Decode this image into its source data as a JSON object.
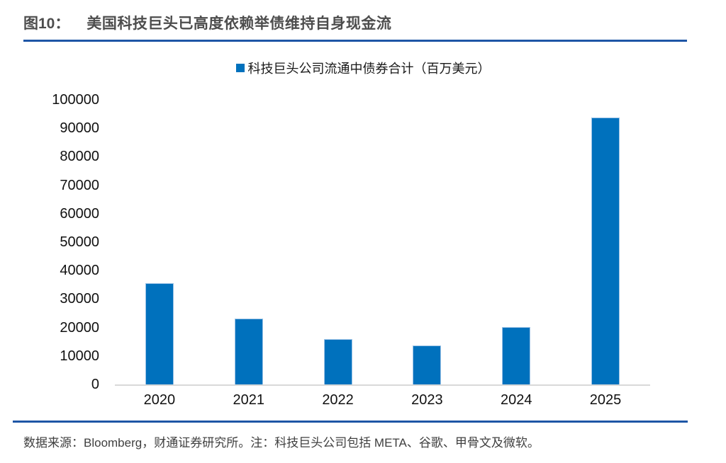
{
  "figure": {
    "label": "图10：",
    "title": "美国科技巨头已高度依赖举债维持自身现金流"
  },
  "legend": {
    "label": "科技巨头公司流通中债券合计（百万美元）",
    "marker_color": "#0071BD"
  },
  "chart_data": {
    "type": "bar",
    "categories": [
      "2020",
      "2021",
      "2022",
      "2023",
      "2024",
      "2025"
    ],
    "values": [
      35400,
      23000,
      15700,
      13400,
      20000,
      93600
    ],
    "title": "科技巨头公司流通中债券合计（百万美元）",
    "xlabel": "",
    "ylabel": "",
    "ylim": [
      0,
      100000
    ],
    "yticks": [
      100000,
      90000,
      80000,
      70000,
      60000,
      50000,
      40000,
      30000,
      20000,
      10000,
      0
    ],
    "bar_color": "#0071BD",
    "grid": false,
    "legend_position": "top-center"
  },
  "footer": {
    "text": "数据来源：Bloomberg，财通证券研究所。注：科技巨头公司包括 META、谷歌、甲骨文及微软。"
  },
  "colors": {
    "accent_rule": "#1E56A6",
    "bar": "#0071BD",
    "axis_line": "#D9D9D9",
    "title_text": "#4D4D4D",
    "footer_text": "#3F3F3F"
  }
}
